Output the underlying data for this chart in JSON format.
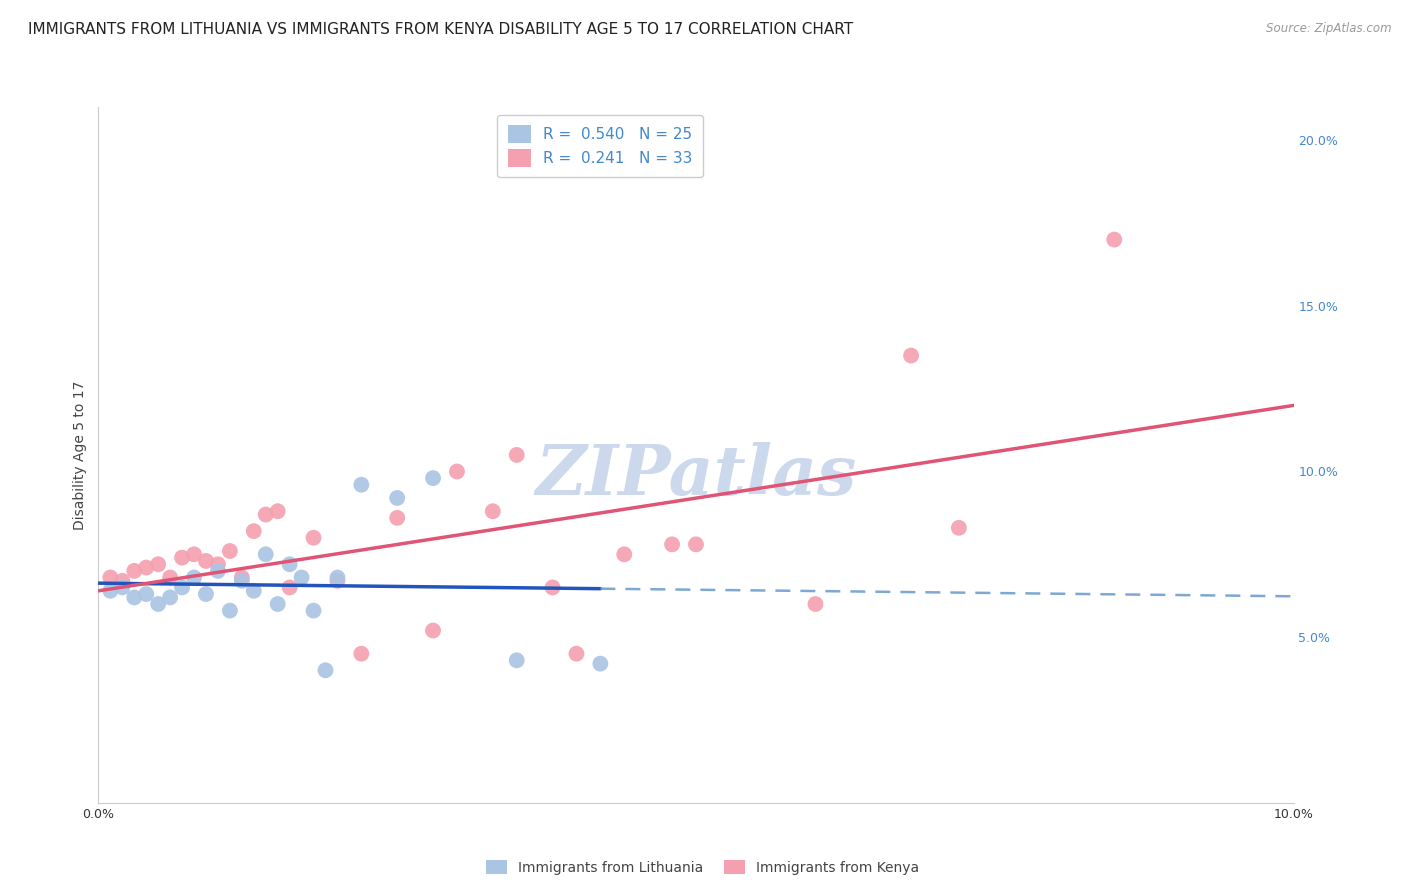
{
  "title": "IMMIGRANTS FROM LITHUANIA VS IMMIGRANTS FROM KENYA DISABILITY AGE 5 TO 17 CORRELATION CHART",
  "source": "Source: ZipAtlas.com",
  "ylabel": "Disability Age 5 to 17",
  "xlim": [
    0.0,
    0.1
  ],
  "ylim": [
    0.0,
    0.21
  ],
  "x_tick_positions": [
    0.0,
    0.02,
    0.04,
    0.06,
    0.08,
    0.1
  ],
  "x_tick_labels": [
    "0.0%",
    "",
    "",
    "",
    "",
    "10.0%"
  ],
  "y_ticks_right": [
    0.05,
    0.1,
    0.15,
    0.2
  ],
  "y_tick_labels_right": [
    "5.0%",
    "10.0%",
    "15.0%",
    "20.0%"
  ],
  "watermark": "ZIPatlas",
  "lithuania_x": [
    0.001,
    0.002,
    0.003,
    0.004,
    0.005,
    0.006,
    0.007,
    0.008,
    0.009,
    0.01,
    0.011,
    0.012,
    0.013,
    0.014,
    0.015,
    0.016,
    0.017,
    0.018,
    0.019,
    0.02,
    0.022,
    0.025,
    0.028,
    0.035,
    0.042
  ],
  "lithuania_y": [
    0.064,
    0.065,
    0.062,
    0.063,
    0.06,
    0.062,
    0.065,
    0.068,
    0.063,
    0.07,
    0.058,
    0.067,
    0.064,
    0.075,
    0.06,
    0.072,
    0.068,
    0.058,
    0.04,
    0.068,
    0.096,
    0.092,
    0.098,
    0.043,
    0.042
  ],
  "kenya_x": [
    0.001,
    0.002,
    0.003,
    0.004,
    0.005,
    0.006,
    0.007,
    0.008,
    0.009,
    0.01,
    0.011,
    0.012,
    0.013,
    0.014,
    0.015,
    0.016,
    0.018,
    0.02,
    0.022,
    0.025,
    0.028,
    0.03,
    0.033,
    0.035,
    0.038,
    0.04,
    0.044,
    0.048,
    0.05,
    0.06,
    0.068,
    0.072,
    0.085
  ],
  "kenya_y": [
    0.068,
    0.067,
    0.07,
    0.071,
    0.072,
    0.068,
    0.074,
    0.075,
    0.073,
    0.072,
    0.076,
    0.068,
    0.082,
    0.087,
    0.088,
    0.065,
    0.08,
    0.067,
    0.045,
    0.086,
    0.052,
    0.1,
    0.088,
    0.105,
    0.065,
    0.045,
    0.075,
    0.078,
    0.078,
    0.06,
    0.135,
    0.083,
    0.17
  ],
  "lithuania_color": "#aac4e4",
  "kenya_color": "#f4a0b0",
  "lithuania_line_color": "#2255bb",
  "kenya_line_color": "#e05575",
  "dashed_line_color": "#6699cc",
  "background_color": "#ffffff",
  "grid_color": "#e0e0e0",
  "title_fontsize": 11,
  "axis_label_fontsize": 10,
  "tick_fontsize": 9,
  "legend_fontsize": 11,
  "watermark_color": "#ccd8ec",
  "watermark_fontsize": 50,
  "right_tick_color": "#4488cc"
}
